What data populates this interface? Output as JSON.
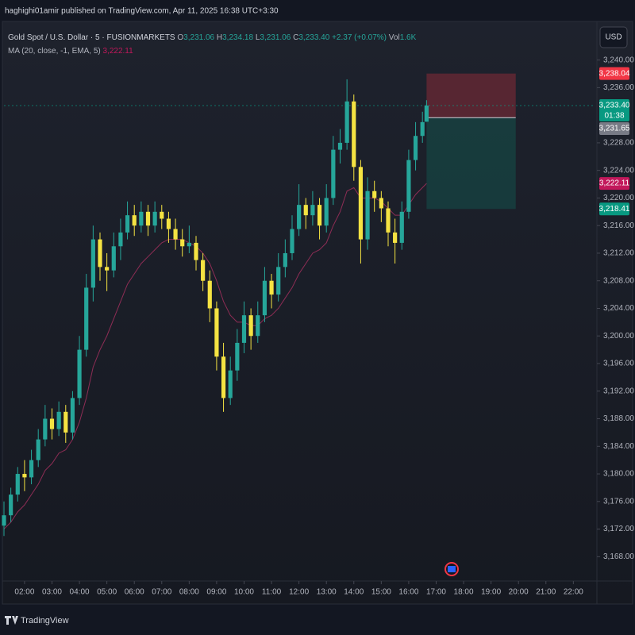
{
  "header": {
    "publisher": "haghighi01amir published on TradingView.com, Apr 11, 2025 16:38 UTC+3:30",
    "symbol": "Gold Spot / U.S. Dollar · 5 · FUSIONMARKETS",
    "legend": [
      {
        "key": "O",
        "value": "3,231.06"
      },
      {
        "key": "H",
        "value": "3,234.18"
      },
      {
        "key": "L",
        "value": "3,231.06"
      },
      {
        "key": "C",
        "value": "3,233.40"
      }
    ],
    "change": "+2.37 (+0.07%)",
    "volume_key": "Vol",
    "volume": "1.6K",
    "indicator": "MA (20, close, -1, EMA, 5)",
    "indicator_value": "3,222.11",
    "currency": "USD"
  },
  "footer": {
    "brand": "TradingView"
  },
  "chart_data": {
    "type": "candlestick",
    "up_color": "#26a69a",
    "down_color": "#f5e342",
    "x": [
      1.25,
      1.5,
      1.75,
      2,
      2.25,
      2.5,
      2.75,
      3,
      3.25,
      3.5,
      3.75,
      4,
      4.25,
      4.5,
      4.75,
      5,
      5.25,
      5.5,
      5.75,
      6,
      6.25,
      6.5,
      6.75,
      7,
      7.25,
      7.5,
      7.75,
      8,
      8.25,
      8.5,
      8.75,
      9,
      9.25,
      9.5,
      9.75,
      10,
      10.25,
      10.5,
      10.75,
      11,
      11.25,
      11.5,
      11.75,
      12,
      12.25,
      12.5,
      12.75,
      13,
      13.25,
      13.5,
      13.75,
      14,
      14.25,
      14.5,
      14.75,
      15,
      15.25,
      15.5,
      15.75,
      16,
      16.25,
      16.5,
      16.65
    ],
    "ohlc": [
      [
        3172.5,
        3176,
        3171,
        3174
      ],
      [
        3174,
        3178,
        3173,
        3177
      ],
      [
        3177,
        3181,
        3176,
        3180
      ],
      [
        3180,
        3182,
        3177.5,
        3179.5
      ],
      [
        3179.5,
        3183.5,
        3178.5,
        3182
      ],
      [
        3182,
        3186.5,
        3181,
        3185
      ],
      [
        3185,
        3190,
        3184,
        3188
      ],
      [
        3188,
        3189.5,
        3185,
        3186.5
      ],
      [
        3186.5,
        3190.5,
        3185.5,
        3189
      ],
      [
        3189,
        3190,
        3184.5,
        3186
      ],
      [
        3186,
        3192,
        3185,
        3191
      ],
      [
        3191,
        3200,
        3190,
        3198
      ],
      [
        3198,
        3209,
        3197,
        3207
      ],
      [
        3207,
        3216,
        3205,
        3214
      ],
      [
        3214,
        3215,
        3208,
        3210
      ],
      [
        3210,
        3212,
        3206.5,
        3209.5
      ],
      [
        3209.5,
        3215,
        3208.5,
        3213
      ],
      [
        3213,
        3217,
        3211,
        3215
      ],
      [
        3215,
        3219.5,
        3214,
        3217.5
      ],
      [
        3217.5,
        3219,
        3214.5,
        3216
      ],
      [
        3216,
        3219.5,
        3215,
        3218
      ],
      [
        3218,
        3219,
        3214.5,
        3216
      ],
      [
        3216,
        3219.5,
        3215,
        3218
      ],
      [
        3218,
        3219,
        3215.5,
        3217
      ],
      [
        3217,
        3218,
        3213.5,
        3215.5
      ],
      [
        3215.5,
        3217,
        3212.5,
        3214
      ],
      [
        3214,
        3215.5,
        3211.5,
        3213
      ],
      [
        3213,
        3216,
        3212,
        3213.5
      ],
      [
        3213.5,
        3214.5,
        3209.5,
        3211
      ],
      [
        3211,
        3212,
        3206.5,
        3208
      ],
      [
        3208,
        3209.5,
        3202,
        3204
      ],
      [
        3204,
        3205,
        3195,
        3197
      ],
      [
        3197,
        3199,
        3189,
        3191
      ],
      [
        3191,
        3197,
        3190,
        3195
      ],
      [
        3195,
        3201,
        3193.5,
        3199
      ],
      [
        3199,
        3205,
        3197.5,
        3203
      ],
      [
        3203,
        3204,
        3198,
        3200
      ],
      [
        3200,
        3205,
        3199,
        3203
      ],
      [
        3203,
        3210,
        3202,
        3208
      ],
      [
        3208,
        3209,
        3204,
        3206
      ],
      [
        3206,
        3212,
        3205,
        3210
      ],
      [
        3210,
        3214,
        3208.5,
        3212
      ],
      [
        3212,
        3217.5,
        3211,
        3215.5
      ],
      [
        3215.5,
        3222,
        3214.5,
        3219
      ],
      [
        3219,
        3220,
        3215.5,
        3217.5
      ],
      [
        3217.5,
        3221,
        3216,
        3219
      ],
      [
        3219,
        3220,
        3214,
        3216
      ],
      [
        3216,
        3222,
        3215,
        3220
      ],
      [
        3220,
        3229,
        3219,
        3227
      ],
      [
        3227,
        3230,
        3225,
        3228
      ],
      [
        3228,
        3237.2,
        3227,
        3234
      ],
      [
        3234,
        3235,
        3222.5,
        3224.5
      ],
      [
        3224.5,
        3225.5,
        3210.5,
        3214
      ],
      [
        3214,
        3223,
        3212.5,
        3221
      ],
      [
        3221,
        3222.5,
        3218,
        3220
      ],
      [
        3220,
        3221,
        3216.5,
        3218.5
      ],
      [
        3218.5,
        3219.5,
        3213,
        3215
      ],
      [
        3215,
        3217,
        3210.5,
        3213.5
      ],
      [
        3213.5,
        3219.5,
        3212.5,
        3218
      ],
      [
        3218,
        3227,
        3217,
        3225.5
      ],
      [
        3225.5,
        3231,
        3224,
        3229
      ],
      [
        3229,
        3232.5,
        3228,
        3231
      ],
      [
        3231.06,
        3234.18,
        3231.06,
        3233.4
      ]
    ],
    "ma": {
      "color": "#8e2d55",
      "values": [
        3172,
        3173,
        3174.5,
        3175.5,
        3177,
        3178.5,
        3180.5,
        3181.5,
        3183,
        3183.5,
        3185,
        3187.5,
        3191,
        3195.5,
        3198,
        3200,
        3202.5,
        3205,
        3207.5,
        3209,
        3210.5,
        3211.5,
        3212.5,
        3213.5,
        3214,
        3214,
        3214,
        3213.5,
        3213,
        3212,
        3210.5,
        3208,
        3205,
        3203,
        3202,
        3202,
        3201.5,
        3201.5,
        3202.5,
        3203,
        3204,
        3205.5,
        3207,
        3209,
        3210.5,
        3212,
        3212.5,
        3213.5,
        3216,
        3218,
        3221,
        3221.5,
        3220,
        3220,
        3220,
        3219.5,
        3218.5,
        3217.5,
        3217.5,
        3219,
        3220.5,
        3221.5,
        3222.11
      ]
    },
    "xlim": [
      1.25,
      22.8
    ],
    "ylim": [
      3164.7,
      3241.8
    ],
    "xticks": [
      {
        "value": 2,
        "label": "02:00"
      },
      {
        "value": 3,
        "label": "03:00"
      },
      {
        "value": 4,
        "label": "04:00"
      },
      {
        "value": 5,
        "label": "05:00"
      },
      {
        "value": 6,
        "label": "06:00"
      },
      {
        "value": 7,
        "label": "07:00"
      },
      {
        "value": 8,
        "label": "08:00"
      },
      {
        "value": 9,
        "label": "09:00"
      },
      {
        "value": 10,
        "label": "10:00"
      },
      {
        "value": 11,
        "label": "11:00"
      },
      {
        "value": 12,
        "label": "12:00"
      },
      {
        "value": 13,
        "label": "13:00"
      },
      {
        "value": 14,
        "label": "14:00"
      },
      {
        "value": 15,
        "label": "15:00"
      },
      {
        "value": 16,
        "label": "16:00"
      },
      {
        "value": 17,
        "label": "17:00"
      },
      {
        "value": 18,
        "label": "18:00"
      },
      {
        "value": 19,
        "label": "19:00"
      },
      {
        "value": 20,
        "label": "20:00"
      },
      {
        "value": 21,
        "label": "21:00"
      },
      {
        "value": 22,
        "label": "22:00"
      }
    ],
    "yticks": [
      {
        "value": 3240,
        "label": "3,240.00"
      },
      {
        "value": 3236,
        "label": "3,236.00"
      },
      {
        "value": 3228,
        "label": "3,228.00"
      },
      {
        "value": 3224,
        "label": "3,224.00"
      },
      {
        "value": 3220,
        "label": "3,220.00"
      },
      {
        "value": 3216,
        "label": "3,216.00"
      },
      {
        "value": 3212,
        "label": "3,212.00"
      },
      {
        "value": 3208,
        "label": "3,208.00"
      },
      {
        "value": 3204,
        "label": "3,204.00"
      },
      {
        "value": 3200,
        "label": "3,200.00"
      },
      {
        "value": 3196,
        "label": "3,196.00"
      },
      {
        "value": 3192,
        "label": "3,192.00"
      },
      {
        "value": 3188,
        "label": "3,188.00"
      },
      {
        "value": 3184,
        "label": "3,184.00"
      },
      {
        "value": 3180,
        "label": "3,180.00"
      },
      {
        "value": 3176,
        "label": "3,176.00"
      },
      {
        "value": 3172,
        "label": "3,172.00"
      },
      {
        "value": 3168,
        "label": "3,168.00"
      }
    ],
    "last_price": {
      "value": 3233.4,
      "label": "3,233.40",
      "countdown": "01:38",
      "color": "#089981"
    },
    "ma_label": {
      "value": 3222.11,
      "label": "3,222.11",
      "color": "#c2185b"
    },
    "position": {
      "x_start": 16.65,
      "x_end": 19.9,
      "stop": {
        "value": 3238.04,
        "label": "3,238.04",
        "color": "#f23645"
      },
      "entry": {
        "value": 3231.65,
        "label": "3,231.65",
        "color": "#787b86"
      },
      "target": {
        "value": 3218.41,
        "label": "3,218.41",
        "color": "#089981"
      }
    }
  }
}
